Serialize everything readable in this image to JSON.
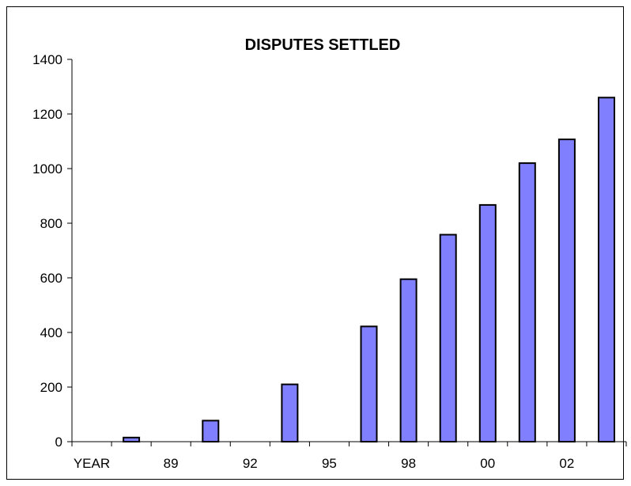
{
  "chart_data": {
    "type": "bar",
    "title": "DISPUTES SETTLED",
    "categories": [
      "YEAR",
      "",
      "89",
      "",
      "92",
      "",
      "95",
      "",
      "98",
      "",
      "00",
      "",
      "02",
      ""
    ],
    "values": [
      null,
      15,
      null,
      77,
      null,
      210,
      null,
      422,
      595,
      758,
      867,
      1020,
      1107,
      1260
    ],
    "ylim": [
      0,
      1400
    ],
    "yticks": [
      0,
      200,
      400,
      600,
      800,
      1000,
      1200,
      1400
    ],
    "grid": false,
    "legend": "none",
    "bar_color": "#8080ff",
    "bar_edge_color": "#000000"
  }
}
